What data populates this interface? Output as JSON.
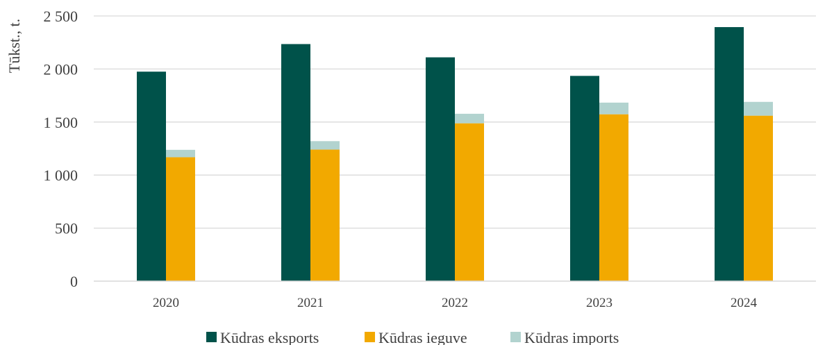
{
  "chart_data": {
    "type": "bar",
    "stacked_groups": [
      [
        "Kūdras ieguve",
        "Kūdras imports"
      ]
    ],
    "categories": [
      "2020",
      "2021",
      "2022",
      "2023",
      "2024"
    ],
    "series": [
      {
        "name": "Kūdras eksports",
        "color": "#00524A",
        "values": [
          1975,
          2235,
          2110,
          1935,
          2395
        ]
      },
      {
        "name": "Kūdras ieguve",
        "color": "#F2A900",
        "values": [
          1168,
          1240,
          1488,
          1573,
          1560
        ]
      },
      {
        "name": "Kūdras imports",
        "color": "#B2D3CF",
        "values": [
          70,
          80,
          90,
          110,
          130
        ]
      }
    ],
    "ylabel": "Tūkst., t.",
    "xlabel": "",
    "ylim": [
      0,
      2500
    ],
    "yticks": [
      {
        "value": 0,
        "label": "0"
      },
      {
        "value": 500,
        "label": "500"
      },
      {
        "value": 1000,
        "label": "1 000"
      },
      {
        "value": 1500,
        "label": "1 500"
      },
      {
        "value": 2000,
        "label": "2 000"
      },
      {
        "value": 2500,
        "label": "2 500"
      }
    ],
    "grid": true,
    "legend_position": "bottom"
  }
}
